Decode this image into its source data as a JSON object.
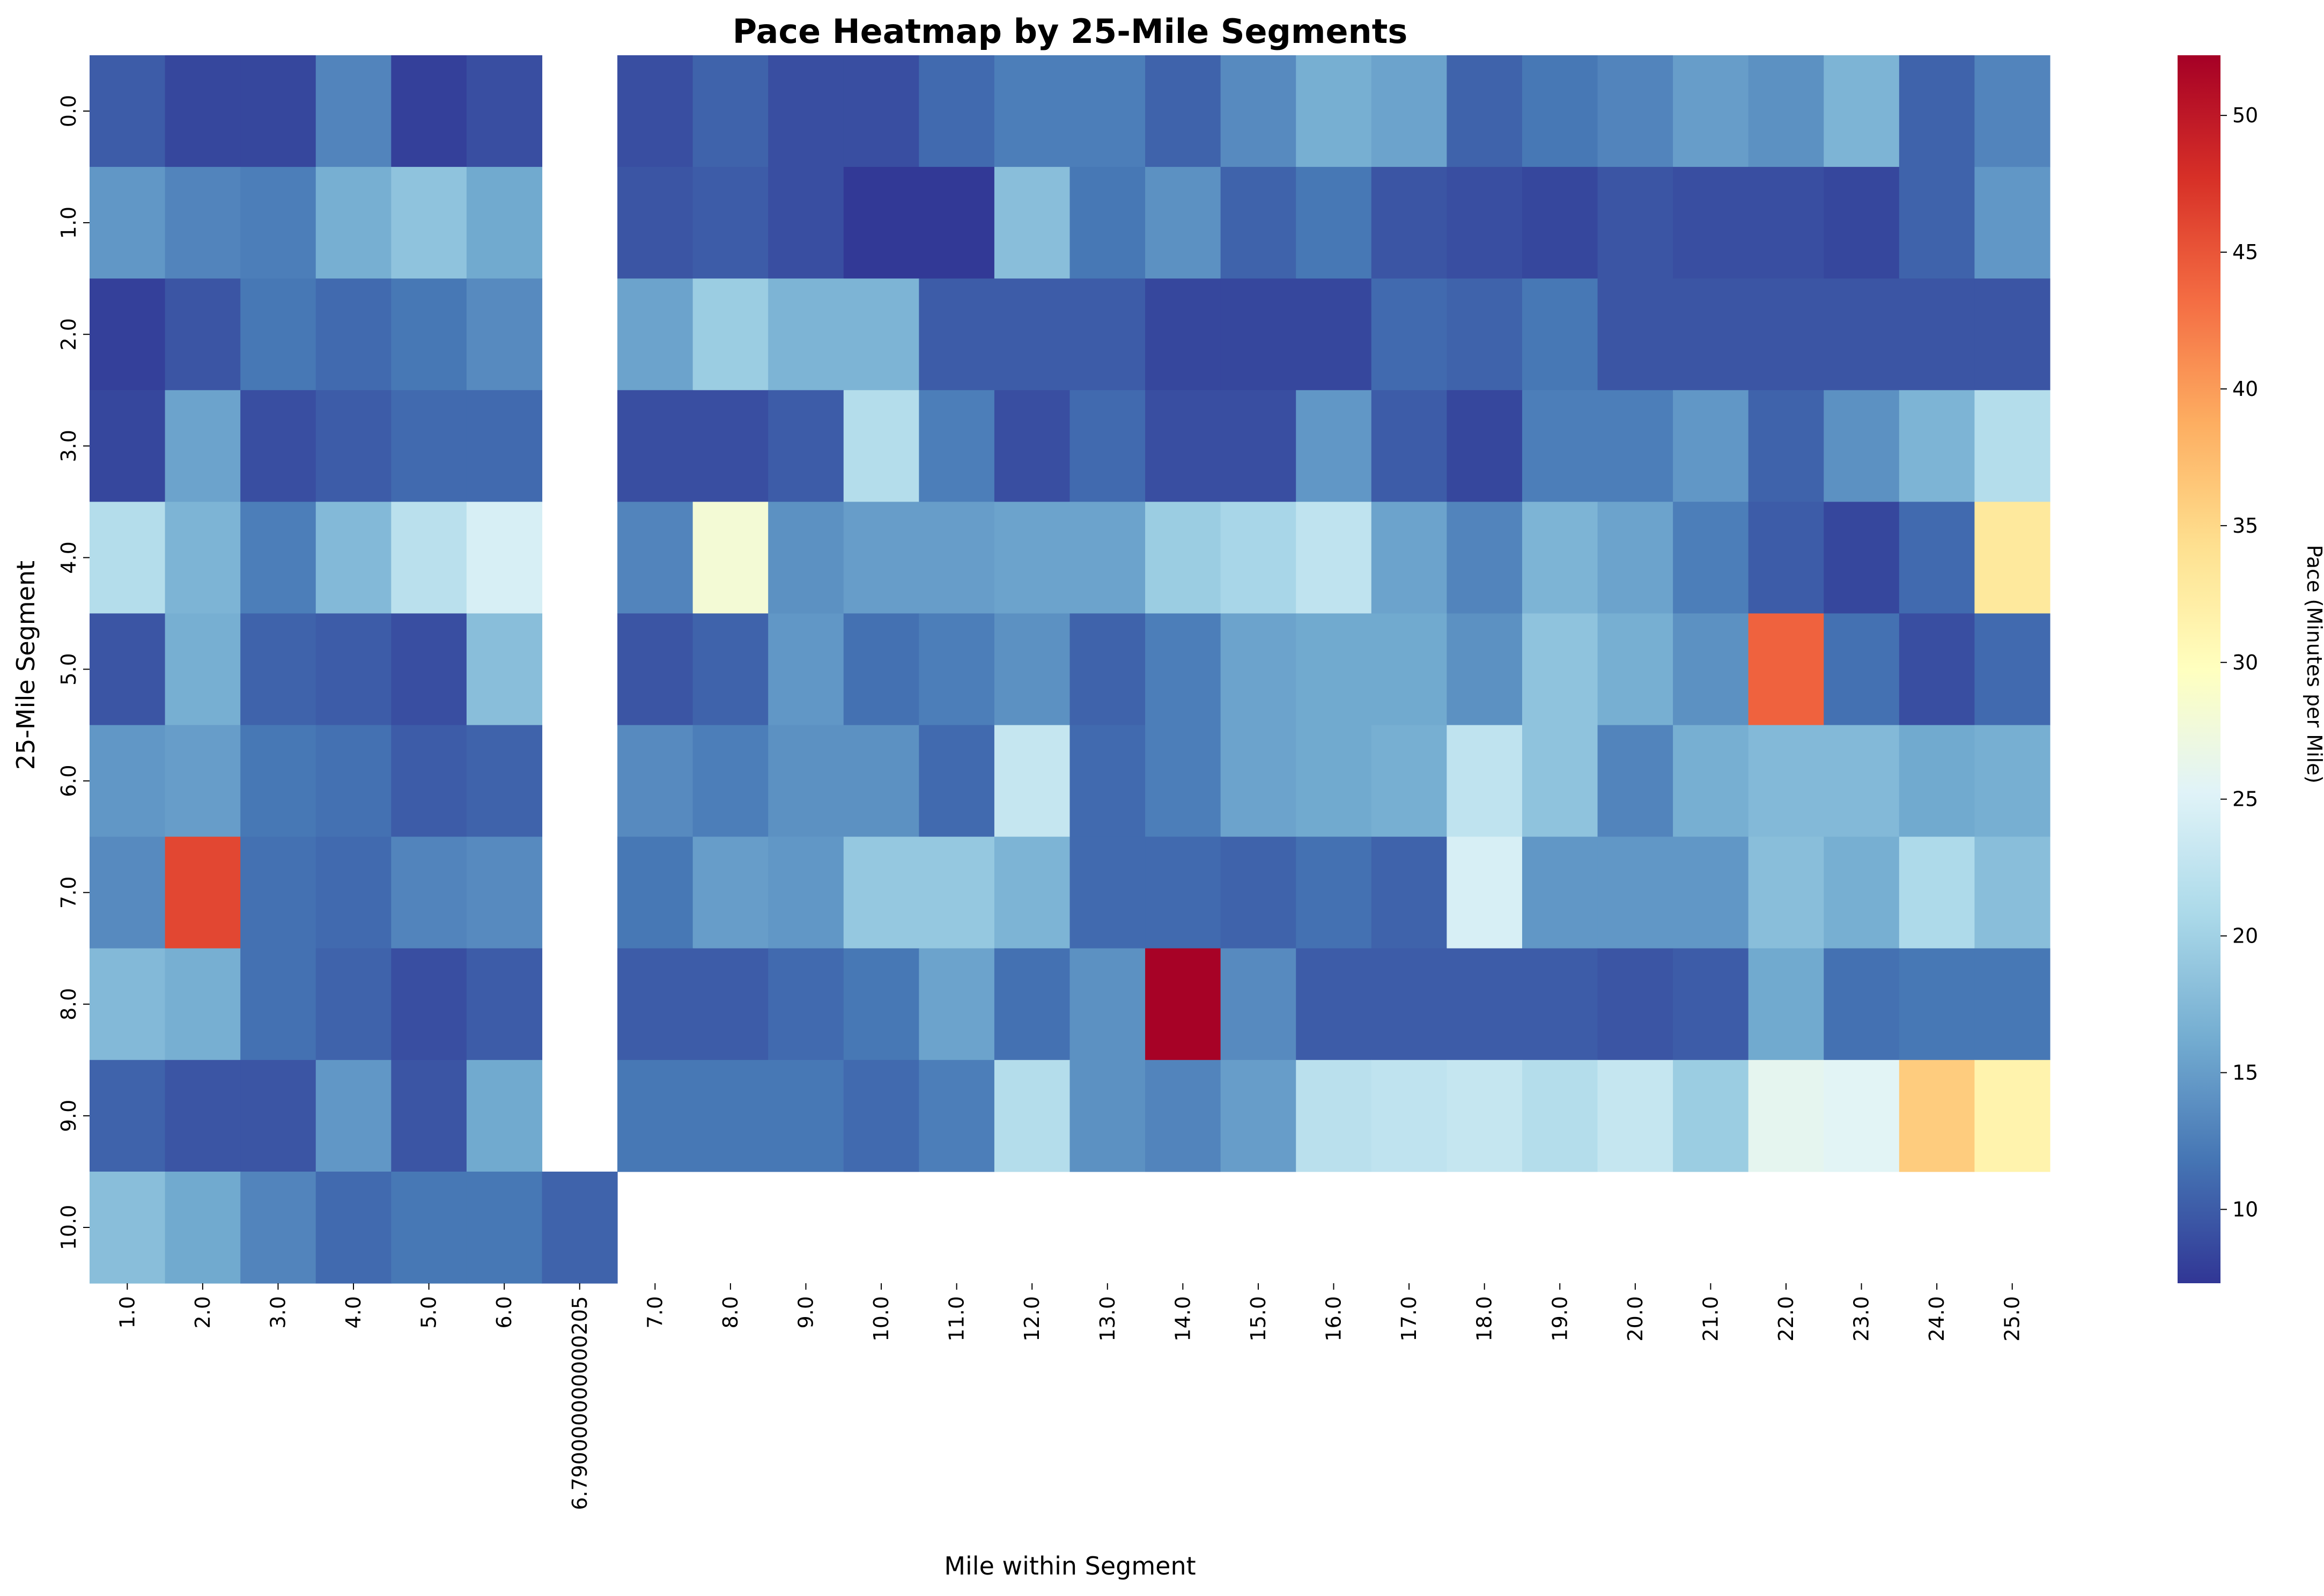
{
  "chart_data": {
    "type": "heatmap",
    "title": "Pace Heatmap by 25-Mile Segments",
    "xlabel": "Mile within Segment",
    "ylabel": "25-Mile Segment",
    "x_categories": [
      "1.0",
      "2.0",
      "3.0",
      "4.0",
      "5.0",
      "6.0",
      "6.790000000000205",
      "7.0",
      "8.0",
      "9.0",
      "10.0",
      "11.0",
      "12.0",
      "13.0",
      "14.0",
      "15.0",
      "16.0",
      "17.0",
      "18.0",
      "19.0",
      "20.0",
      "21.0",
      "22.0",
      "23.0",
      "24.0",
      "25.0"
    ],
    "y_categories": [
      "0.0",
      "1.0",
      "2.0",
      "3.0",
      "4.0",
      "5.0",
      "6.0",
      "7.0",
      "8.0",
      "9.0",
      "10.0"
    ],
    "values": [
      [
        10,
        8.5,
        8.5,
        13,
        8,
        9,
        null,
        9,
        10.5,
        9,
        9,
        11,
        12.5,
        12.5,
        10.5,
        13.5,
        16.5,
        15.5,
        10.5,
        12,
        13,
        15,
        14,
        17,
        10.5,
        13
      ],
      [
        14.5,
        13,
        12.5,
        16.5,
        18.5,
        16,
        null,
        9.5,
        10,
        9,
        7.5,
        7.5,
        18,
        12,
        14,
        10.5,
        12,
        9.5,
        9,
        8.5,
        9.5,
        9,
        9,
        8.5,
        10.5,
        14.5
      ],
      [
        8,
        9.5,
        12,
        11,
        12,
        13.5,
        null,
        15.5,
        19.5,
        17,
        17,
        10,
        10,
        10,
        8.5,
        8.5,
        8.5,
        11,
        10.5,
        12,
        9.5,
        9.5,
        9.5,
        9.5,
        9.5,
        9.5
      ],
      [
        8.5,
        15.5,
        9,
        10,
        11,
        11,
        null,
        9,
        9,
        10,
        21.5,
        12.5,
        9,
        11,
        9,
        9,
        14.5,
        10,
        8.5,
        12.5,
        12.5,
        14.5,
        10.5,
        14,
        17,
        21.5
      ],
      [
        21.5,
        17,
        12.5,
        17.5,
        22,
        24.5,
        null,
        13,
        28,
        14,
        15,
        15,
        15.5,
        15.5,
        19.5,
        20.5,
        22.5,
        15.5,
        13,
        17,
        15.5,
        12.5,
        10,
        8.5,
        11,
        33
      ],
      [
        9.5,
        16.5,
        10.5,
        10,
        9,
        18,
        null,
        9.5,
        10.5,
        14.5,
        11.5,
        12.5,
        14,
        10.5,
        12.5,
        15.5,
        16,
        16,
        14,
        18.5,
        16.5,
        14,
        44,
        11.5,
        9,
        11
      ],
      [
        14.5,
        15,
        12,
        11.5,
        10,
        10.5,
        null,
        13.5,
        12.5,
        14,
        14,
        11,
        23,
        11,
        12.5,
        15.5,
        16,
        16.5,
        22.5,
        18.5,
        13,
        16.5,
        17.5,
        17.5,
        16,
        16.5
      ],
      [
        13.5,
        46,
        11.5,
        11,
        13,
        13.5,
        null,
        12,
        15,
        14.5,
        19,
        19,
        17,
        11,
        11,
        10.5,
        11.5,
        10.5,
        24.5,
        14.5,
        14.5,
        14.5,
        18,
        16.5,
        21,
        18
      ],
      [
        17.5,
        16.5,
        11.5,
        10.5,
        9,
        10,
        null,
        10,
        10,
        11,
        12,
        15.5,
        11.5,
        14,
        52,
        13.5,
        10,
        10,
        10,
        10,
        9.5,
        10,
        16,
        11.5,
        12,
        12
      ],
      [
        10.5,
        9.5,
        9.5,
        14.5,
        9.5,
        16,
        null,
        12,
        12,
        12,
        11,
        12.5,
        21.5,
        14,
        13,
        15,
        22,
        22.5,
        23,
        21.5,
        23,
        19.5,
        26,
        25.5,
        36,
        31.5
      ],
      [
        18,
        16,
        13,
        11,
        12,
        12,
        10.5,
        null,
        null,
        null,
        null,
        null,
        null,
        null,
        null,
        null,
        null,
        null,
        null,
        null,
        null,
        null,
        null,
        null,
        null,
        null
      ]
    ],
    "vmin": 7.3,
    "vmax": 52.2,
    "colormap": "RdYlBu_r",
    "colorbar": {
      "label": "Pace (Minutes per Mile)",
      "ticks": [
        "10",
        "15",
        "20",
        "25",
        "30",
        "35",
        "40",
        "45",
        "50"
      ]
    }
  }
}
